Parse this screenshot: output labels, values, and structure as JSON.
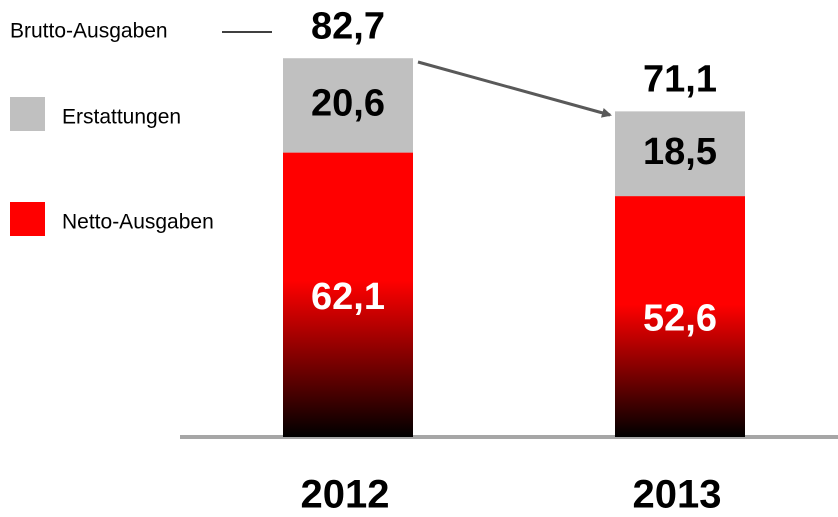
{
  "chart_data": {
    "type": "stacked-bar",
    "categories": [
      "2012",
      "2013"
    ],
    "series": [
      {
        "name": "Netto-Ausgaben",
        "color": "#ff0000",
        "values": [
          62.1,
          52.6
        ],
        "value_labels": [
          "62,1",
          "52,6"
        ]
      },
      {
        "name": "Erstattungen",
        "color": "#c0c0c0",
        "values": [
          20.6,
          18.5
        ],
        "value_labels": [
          "20,6",
          "18,5"
        ]
      }
    ],
    "totals": {
      "name": "Brutto-Ausgaben",
      "values": [
        82.7,
        71.1
      ],
      "value_labels": [
        "82,7",
        "71,1"
      ]
    }
  }
}
